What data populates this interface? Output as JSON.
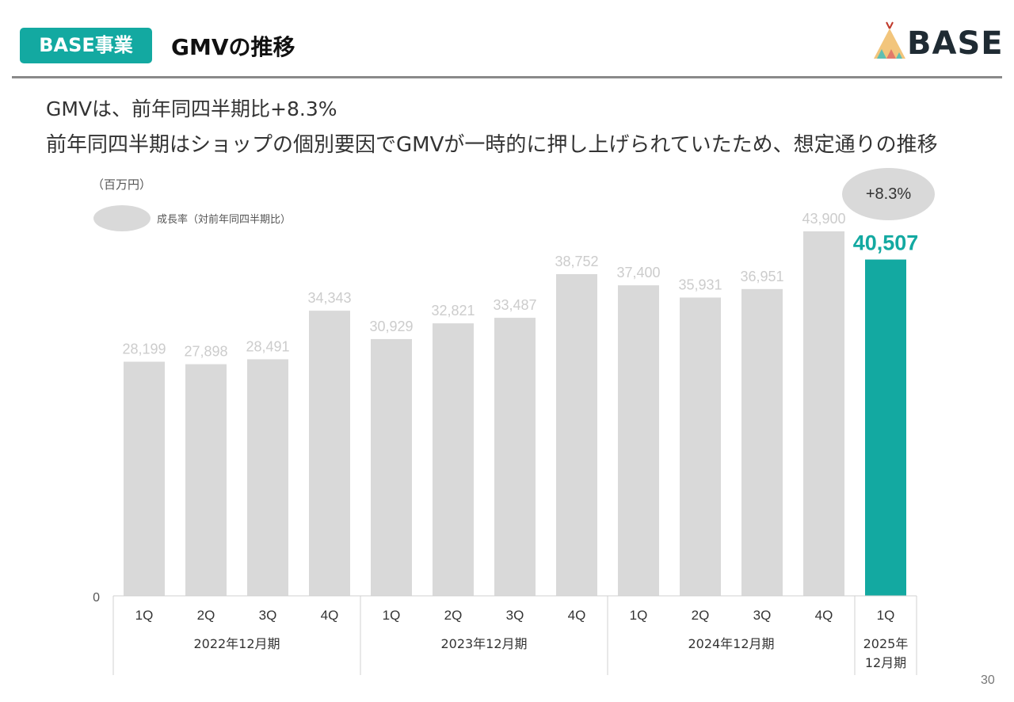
{
  "header": {
    "badge": "BASE事業",
    "title": "GMVの推移",
    "logo_text": "BASE"
  },
  "subtitle": {
    "line1": "GMVは、前年同四半期比+8.3%",
    "line2": "前年同四半期はショップの個別要因でGMVが一時的に押し上げられていたため、想定通りの推移"
  },
  "legend": {
    "unit": "（百万円）",
    "growth_label": "成長率（対前年同四半期比）"
  },
  "growth_callout": "+8.3%",
  "page_number": "30",
  "colors": {
    "accent": "#13a9a1",
    "bar_default": "#d9d9d9",
    "bar_label": "#cccccc"
  },
  "chart_data": {
    "type": "bar",
    "categories": [
      "1Q",
      "2Q",
      "3Q",
      "4Q",
      "1Q",
      "2Q",
      "3Q",
      "4Q",
      "1Q",
      "2Q",
      "3Q",
      "4Q",
      "1Q"
    ],
    "values": [
      28199,
      27898,
      28491,
      34343,
      30929,
      32821,
      33487,
      38752,
      37400,
      35931,
      36951,
      43900,
      40507
    ],
    "value_labels": [
      "28,199",
      "27,898",
      "28,491",
      "34,343",
      "30,929",
      "32,821",
      "33,487",
      "38,752",
      "37,400",
      "35,931",
      "36,951",
      "43,900",
      "40,507"
    ],
    "highlight_index": 12,
    "groups": [
      {
        "label": "2022年12月期",
        "start": 0,
        "end": 3
      },
      {
        "label": "2023年12月期",
        "start": 4,
        "end": 7
      },
      {
        "label": "2024年12月期",
        "start": 8,
        "end": 11
      },
      {
        "label": "2025年\n12月期",
        "start": 12,
        "end": 12
      }
    ],
    "y_zero_label": "0",
    "ylim": [
      0,
      43900
    ],
    "grid": false
  }
}
